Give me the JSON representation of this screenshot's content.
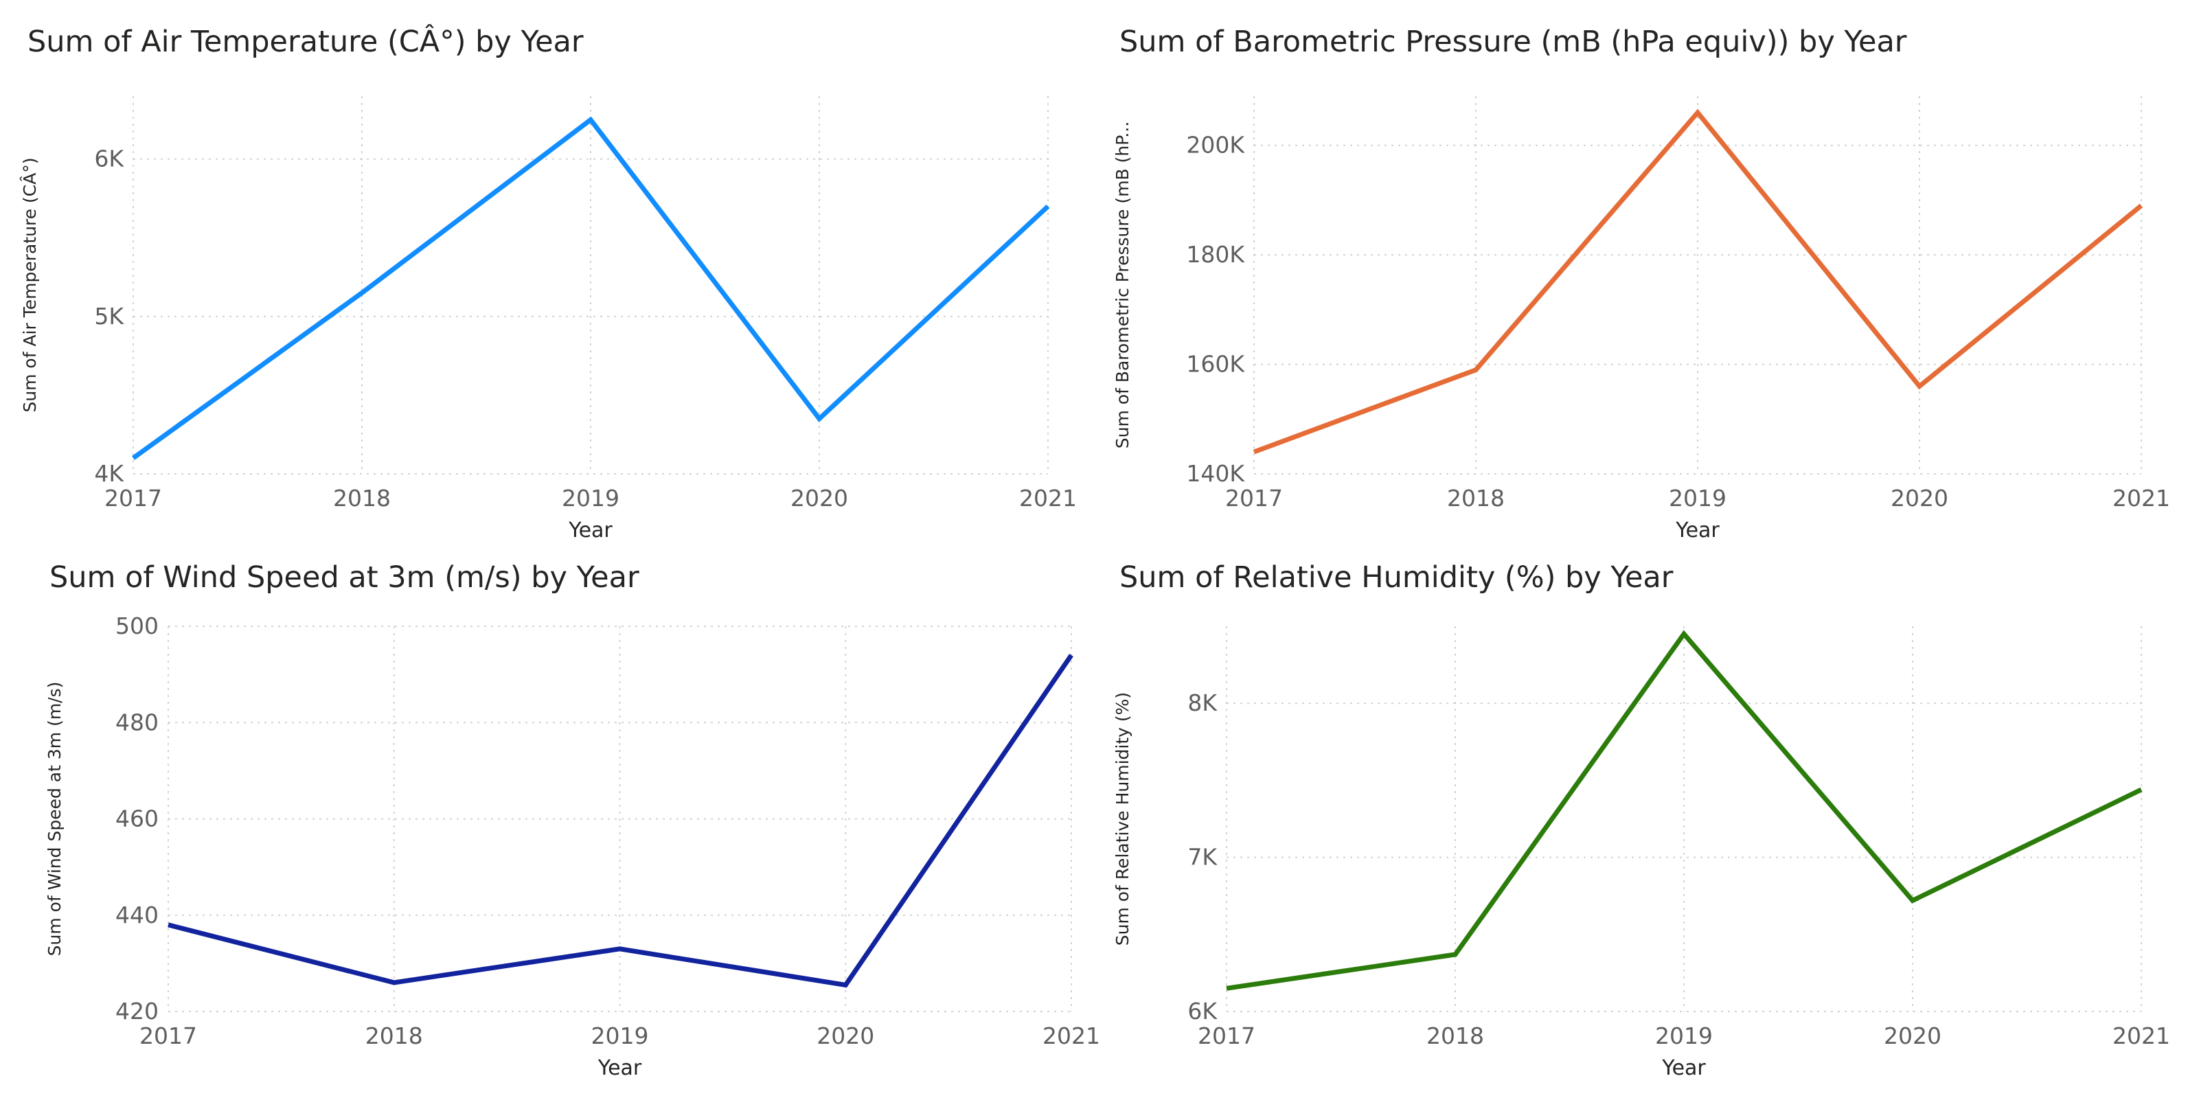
{
  "chart_data": [
    {
      "type": "line",
      "title": "Sum of Air Temperature (CÂ°) by Year",
      "xlabel": "Year",
      "ylabel": "Sum of Air Temperature (CÂ°)",
      "x": [
        "2017",
        "2018",
        "2019",
        "2020",
        "2021"
      ],
      "values": [
        4100,
        5150,
        6250,
        4350,
        5700
      ],
      "ylim": [
        4000,
        6400
      ],
      "yticks": [
        4000,
        5000,
        6000
      ],
      "yticklabels": [
        "4K",
        "5K",
        "6K"
      ],
      "color": "#118dff",
      "grid": true,
      "legend": "none"
    },
    {
      "type": "line",
      "title": "Sum of Barometric Pressure (mB (hPa equiv)) by Year",
      "xlabel": "Year",
      "ylabel": "Sum of Barometric Pressure (mB (hP...",
      "x": [
        "2017",
        "2018",
        "2019",
        "2020",
        "2021"
      ],
      "values": [
        144000,
        159000,
        206000,
        156000,
        189000
      ],
      "ylim": [
        140000,
        209000
      ],
      "yticks": [
        140000,
        160000,
        180000,
        200000
      ],
      "yticklabels": [
        "140K",
        "160K",
        "180K",
        "200K"
      ],
      "color": "#e66c37",
      "grid": true,
      "legend": "none"
    },
    {
      "type": "line",
      "title": "Sum of Wind Speed at 3m (m/s) by Year",
      "xlabel": "Year",
      "ylabel": "Sum of Wind Speed at 3m (m/s)",
      "x": [
        "2017",
        "2018",
        "2019",
        "2020",
        "2021"
      ],
      "values": [
        438,
        426,
        433,
        425.5,
        494
      ],
      "ylim": [
        420,
        500
      ],
      "yticks": [
        420,
        440,
        460,
        480,
        500
      ],
      "yticklabels": [
        "420",
        "440",
        "460",
        "480",
        "500"
      ],
      "color": "#12239e",
      "grid": true,
      "legend": "none"
    },
    {
      "type": "line",
      "title": "Sum of Relative Humidity (%) by Year",
      "xlabel": "Year",
      "ylabel": "Sum of Relative Humidity (%)",
      "x": [
        "2017",
        "2018",
        "2019",
        "2020",
        "2021"
      ],
      "values": [
        6150,
        6370,
        8450,
        6720,
        7440
      ],
      "ylim": [
        6000,
        8500
      ],
      "yticks": [
        6000,
        7000,
        8000
      ],
      "yticklabels": [
        "6K",
        "7K",
        "8K"
      ],
      "color": "#2b7c0a",
      "grid": true,
      "legend": "none"
    }
  ]
}
